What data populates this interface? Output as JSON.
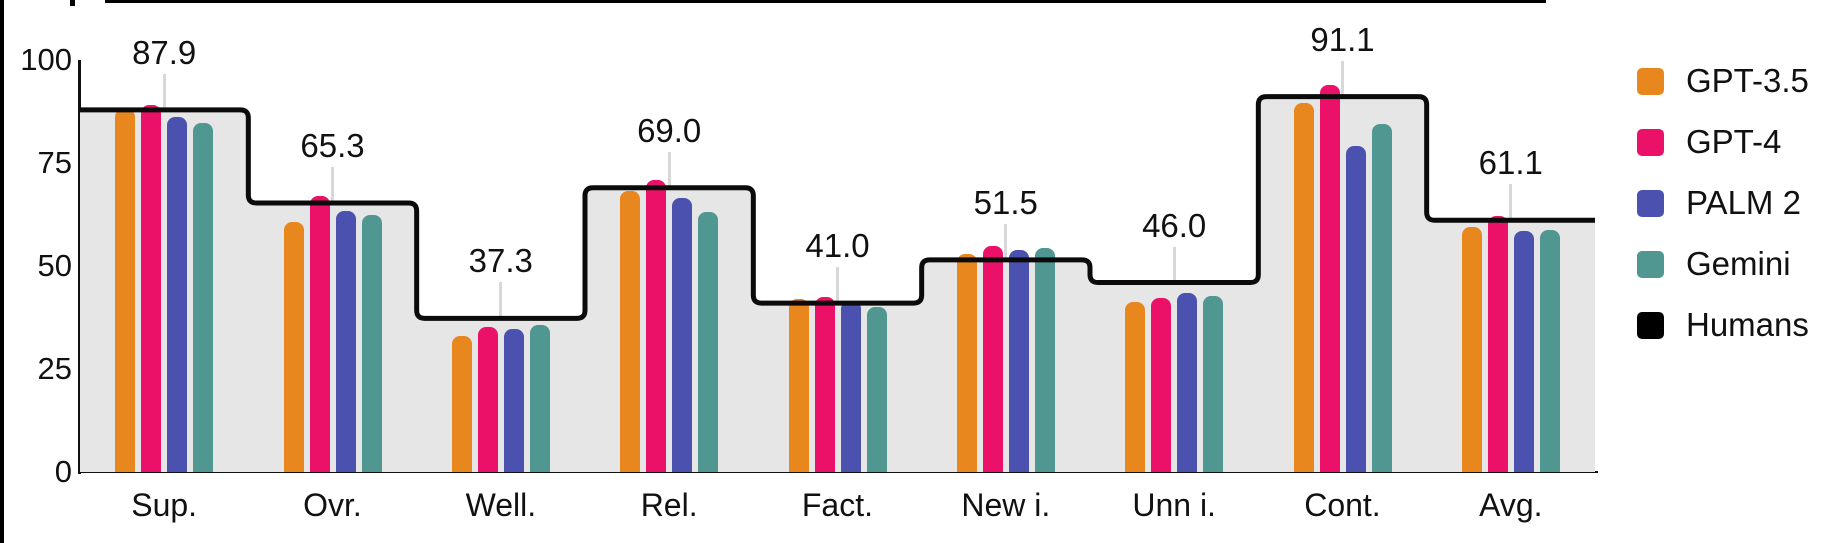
{
  "chart_data": {
    "type": "bar",
    "title": "",
    "categories": [
      "Sup.",
      "Ovr.",
      "Well.",
      "Rel.",
      "Fact.",
      "New i.",
      "Unn i.",
      "Cont.",
      "Avg."
    ],
    "series": [
      {
        "name": "GPT-3.5",
        "color": "#E8871E",
        "style": "bar",
        "values": [
          88.0,
          60.8,
          33.0,
          68.2,
          42.0,
          53.0,
          41.3,
          89.5,
          59.5
        ]
      },
      {
        "name": "GPT-4",
        "color": "#EC1168",
        "style": "bar",
        "values": [
          89.0,
          67.0,
          35.1,
          70.9,
          42.5,
          54.9,
          42.3,
          94.0,
          62.2
        ]
      },
      {
        "name": "PALM 2",
        "color": "#4A51AF",
        "style": "bar",
        "values": [
          86.1,
          63.3,
          34.6,
          66.5,
          41.5,
          53.9,
          43.5,
          79.2,
          58.6
        ]
      },
      {
        "name": "Gemini",
        "color": "#4F9790",
        "style": "bar",
        "values": [
          84.8,
          62.4,
          35.8,
          63.2,
          40.0,
          54.4,
          42.8,
          84.4,
          58.7
        ]
      },
      {
        "name": "Humans",
        "color": "#000000",
        "style": "step-line",
        "values": [
          87.9,
          65.3,
          37.3,
          69.0,
          41.0,
          51.5,
          46.0,
          91.1,
          61.1
        ]
      }
    ],
    "value_labels": [
      "87.9",
      "65.3",
      "37.3",
      "69.0",
      "41.0",
      "51.5",
      "46.0",
      "91.1",
      "61.1"
    ],
    "y_axis": {
      "min": 0,
      "max": 100,
      "tick_labels": [
        "0",
        "25",
        "50",
        "75",
        "100"
      ],
      "tick_values": [
        0,
        25,
        50,
        75,
        100
      ]
    },
    "legend": {
      "position": "right",
      "entries": [
        "GPT-3.5",
        "GPT-4",
        "PALM 2",
        "Gemini",
        "Humans"
      ]
    },
    "layout_hints": {
      "grid": false,
      "step_area_fill_under_humans_line": true
    },
    "colors": {
      "plot_area_fill": "#E6E6E6",
      "step_line": "#0B0B0B",
      "leader_line": "#D8D8D8",
      "axis_line": "#111111",
      "text": "#111111",
      "frame": "#000000"
    }
  }
}
